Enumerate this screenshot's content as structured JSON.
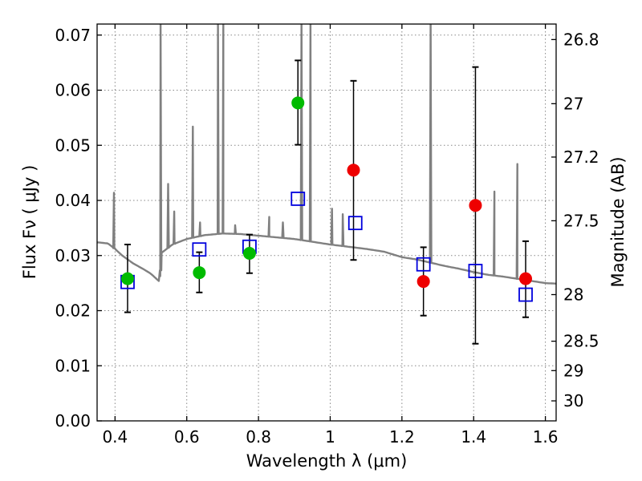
{
  "chart_data": {
    "type": "scatter",
    "xlabel": "Wavelength  λ (μm)",
    "ylabel": "Flux  Fν  ( μJy )",
    "ylabel_right": "Magnitude (AB)",
    "xlim": [
      0.35,
      1.63
    ],
    "ylim": [
      0.0,
      0.072
    ],
    "x_ticks": [
      0.4,
      0.6,
      0.8,
      1.0,
      1.2,
      1.4,
      1.6
    ],
    "x_tick_labels": [
      "0.4",
      "0.6",
      "0.8",
      "1",
      "1.2",
      "1.4",
      "1.6"
    ],
    "y_ticks": [
      0.0,
      0.01,
      0.02,
      0.03,
      0.04,
      0.05,
      0.06,
      0.07
    ],
    "y_tick_labels": [
      "0.00",
      "0.01",
      "0.02",
      "0.03",
      "0.04",
      "0.05",
      "0.06",
      "0.07"
    ],
    "mag_ticks": [
      26.8,
      27,
      27.2,
      27.5,
      28,
      28.5,
      29,
      30
    ],
    "mag_tick_labels": [
      "26.8",
      "27",
      "27.2",
      "27.5",
      "28",
      "28.5",
      "29",
      "30"
    ],
    "grid": true,
    "colors": {
      "green": "#00bb00",
      "red": "#ee0000",
      "model_box": "#0000dd",
      "spectrum": "#808080",
      "errorbar": "#000000"
    },
    "series": [
      {
        "marker": "circle",
        "color": "green",
        "points": [
          {
            "x": 0.435,
            "y": 0.0258,
            "yerr_low": 0.0197,
            "yerr_high": 0.032
          },
          {
            "x": 0.635,
            "y": 0.0269,
            "yerr_low": 0.0233,
            "yerr_high": 0.0306
          },
          {
            "x": 0.775,
            "y": 0.0304,
            "yerr_low": 0.0268,
            "yerr_high": 0.0338
          },
          {
            "x": 0.91,
            "y": 0.0577,
            "yerr_low": 0.0501,
            "yerr_high": 0.0654
          }
        ]
      },
      {
        "marker": "circle",
        "color": "red",
        "points": [
          {
            "x": 1.065,
            "y": 0.0455,
            "yerr_low": 0.0292,
            "yerr_high": 0.0617
          },
          {
            "x": 1.26,
            "y": 0.0253,
            "yerr_low": 0.0191,
            "yerr_high": 0.0315
          },
          {
            "x": 1.405,
            "y": 0.0391,
            "yerr_low": 0.014,
            "yerr_high": 0.0642
          },
          {
            "x": 1.545,
            "y": 0.0258,
            "yerr_low": 0.0188,
            "yerr_high": 0.0326
          }
        ]
      },
      {
        "marker": "open-square",
        "color": "model_box",
        "points": [
          {
            "x": 0.435,
            "y": 0.0252
          },
          {
            "x": 0.635,
            "y": 0.0311
          },
          {
            "x": 0.775,
            "y": 0.0316
          },
          {
            "x": 0.91,
            "y": 0.0403
          },
          {
            "x": 1.07,
            "y": 0.0359
          },
          {
            "x": 1.26,
            "y": 0.0284
          },
          {
            "x": 1.405,
            "y": 0.0272
          },
          {
            "x": 1.545,
            "y": 0.0229
          }
        ]
      }
    ],
    "model_spectrum": {
      "color": "spectrum",
      "continuum": [
        [
          0.35,
          0.0324
        ],
        [
          0.38,
          0.0322
        ],
        [
          0.4,
          0.0312
        ],
        [
          0.42,
          0.03
        ],
        [
          0.45,
          0.0286
        ],
        [
          0.48,
          0.0275
        ],
        [
          0.5,
          0.0267
        ],
        [
          0.515,
          0.0258
        ],
        [
          0.525,
          0.0252
        ],
        [
          0.53,
          0.0305
        ],
        [
          0.56,
          0.032
        ],
        [
          0.6,
          0.033
        ],
        [
          0.65,
          0.0337
        ],
        [
          0.7,
          0.034
        ],
        [
          0.75,
          0.0339
        ],
        [
          0.8,
          0.0336
        ],
        [
          0.85,
          0.0333
        ],
        [
          0.9,
          0.033
        ],
        [
          0.95,
          0.0325
        ],
        [
          1.0,
          0.032
        ],
        [
          1.05,
          0.0316
        ],
        [
          1.1,
          0.0312
        ],
        [
          1.15,
          0.0307
        ],
        [
          1.2,
          0.0297
        ],
        [
          1.24,
          0.0293
        ],
        [
          1.28,
          0.0287
        ],
        [
          1.32,
          0.0281
        ],
        [
          1.36,
          0.0276
        ],
        [
          1.4,
          0.027
        ],
        [
          1.44,
          0.0265
        ],
        [
          1.48,
          0.0262
        ],
        [
          1.52,
          0.0258
        ],
        [
          1.56,
          0.0254
        ],
        [
          1.6,
          0.025
        ],
        [
          1.63,
          0.0249
        ]
      ],
      "emission_lines": [
        {
          "x": 0.397,
          "peak": 0.0414
        },
        {
          "x": 0.527,
          "peak": 0.073
        },
        {
          "x": 0.548,
          "peak": 0.043
        },
        {
          "x": 0.565,
          "peak": 0.038
        },
        {
          "x": 0.617,
          "peak": 0.0534
        },
        {
          "x": 0.637,
          "peak": 0.036
        },
        {
          "x": 0.687,
          "peak": 0.073
        },
        {
          "x": 0.702,
          "peak": 0.073
        },
        {
          "x": 0.735,
          "peak": 0.0355
        },
        {
          "x": 0.83,
          "peak": 0.037
        },
        {
          "x": 0.868,
          "peak": 0.036
        },
        {
          "x": 0.92,
          "peak": 0.073
        },
        {
          "x": 0.945,
          "peak": 0.073
        },
        {
          "x": 1.005,
          "peak": 0.0385
        },
        {
          "x": 1.035,
          "peak": 0.0375
        },
        {
          "x": 1.28,
          "peak": 0.073
        },
        {
          "x": 1.458,
          "peak": 0.0416
        },
        {
          "x": 1.522,
          "peak": 0.0466
        }
      ]
    }
  }
}
